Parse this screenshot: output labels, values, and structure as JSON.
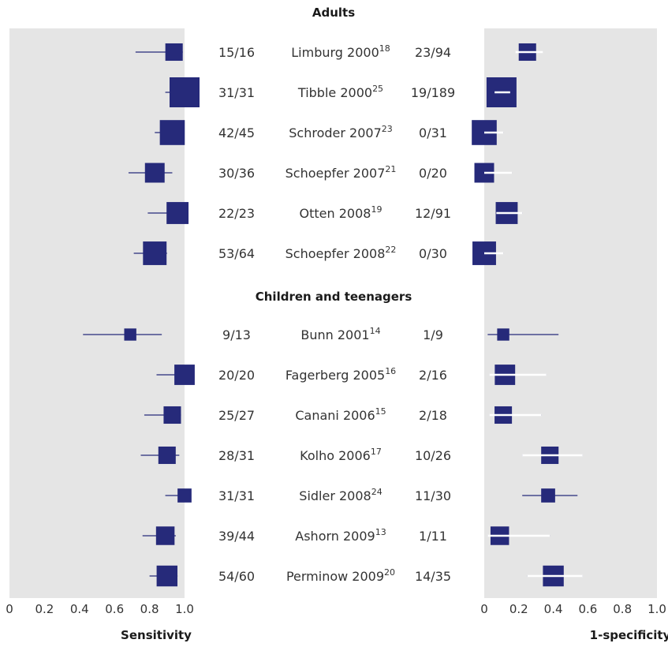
{
  "chart_data": {
    "type": "forest",
    "colors": {
      "marker": "#262a7a",
      "panel": "#e5e5e5"
    },
    "panels": [
      {
        "xlabel": "Sensitivity",
        "xlim": [
          0,
          1.0
        ],
        "ticks": [
          "0",
          "0.2",
          "0.4",
          "0.6",
          "0.8",
          "1.0"
        ]
      },
      {
        "xlabel": "1-specificity",
        "xlim": [
          0,
          1.0
        ],
        "ticks": [
          "0",
          "0.2",
          "0.4",
          "0.6",
          "0.8",
          "1.0"
        ]
      }
    ],
    "groups": [
      {
        "label": "Adults",
        "studies": [
          {
            "sens_count": "15/16",
            "study": "Limburg 2000",
            "ref": "18",
            "spec_count": "23/94",
            "sensitivity": 0.94,
            "sens_ci": [
              0.72,
              0.99
            ],
            "fp_rate": 0.25,
            "fp_ci": [
              0.18,
              0.34
            ],
            "weight": 0.45
          },
          {
            "sens_count": "31/31",
            "study": "Tibble 2000",
            "ref": "25",
            "spec_count": "19/189",
            "sensitivity": 1.0,
            "sens_ci": [
              0.89,
              1.0
            ],
            "fp_rate": 0.1,
            "fp_ci": [
              0.06,
              0.15
            ],
            "weight": 1.0
          },
          {
            "sens_count": "42/45",
            "study": "Schroder 2007",
            "ref": "23",
            "spec_count": "0/31",
            "sensitivity": 0.93,
            "sens_ci": [
              0.83,
              0.99
            ],
            "fp_rate": 0.0,
            "fp_ci": [
              0.0,
              0.11
            ],
            "weight": 0.78
          },
          {
            "sens_count": "30/36",
            "study": "Schoepfer 2007",
            "ref": "21",
            "spec_count": "0/20",
            "sensitivity": 0.83,
            "sens_ci": [
              0.68,
              0.93
            ],
            "fp_rate": 0.0,
            "fp_ci": [
              0.0,
              0.16
            ],
            "weight": 0.55
          },
          {
            "sens_count": "22/23",
            "study": "Otten 2008",
            "ref": "19",
            "spec_count": "12/91",
            "sensitivity": 0.96,
            "sens_ci": [
              0.79,
              1.0
            ],
            "fp_rate": 0.13,
            "fp_ci": [
              0.07,
              0.22
            ],
            "weight": 0.65
          },
          {
            "sens_count": "53/64",
            "study": "Schoepfer 2008",
            "ref": "22",
            "spec_count": "0/30",
            "sensitivity": 0.83,
            "sens_ci": [
              0.71,
              0.9
            ],
            "fp_rate": 0.0,
            "fp_ci": [
              0.0,
              0.11
            ],
            "weight": 0.72
          }
        ]
      },
      {
        "label": "Children and teenagers",
        "studies": [
          {
            "sens_count": "9/13",
            "study": "Bunn 2001",
            "ref": "14",
            "spec_count": "1/9",
            "sensitivity": 0.69,
            "sens_ci": [
              0.42,
              0.87
            ],
            "fp_rate": 0.11,
            "fp_ci": [
              0.02,
              0.43
            ],
            "weight": 0.22
          },
          {
            "sens_count": "20/20",
            "study": "Fagerberg 2005",
            "ref": "16",
            "spec_count": "2/16",
            "sensitivity": 1.0,
            "sens_ci": [
              0.84,
              1.0
            ],
            "fp_rate": 0.12,
            "fp_ci": [
              0.03,
              0.36
            ],
            "weight": 0.58
          },
          {
            "sens_count": "25/27",
            "study": "Canani 2006",
            "ref": "15",
            "spec_count": "2/18",
            "sensitivity": 0.93,
            "sens_ci": [
              0.77,
              0.98
            ],
            "fp_rate": 0.11,
            "fp_ci": [
              0.03,
              0.33
            ],
            "weight": 0.45
          },
          {
            "sens_count": "28/31",
            "study": "Kolho 2006",
            "ref": "17",
            "spec_count": "10/26",
            "sensitivity": 0.9,
            "sens_ci": [
              0.75,
              0.97
            ],
            "fp_rate": 0.38,
            "fp_ci": [
              0.22,
              0.57
            ],
            "weight": 0.45
          },
          {
            "sens_count": "31/31",
            "study": "Sidler 2008",
            "ref": "24",
            "spec_count": "11/30",
            "sensitivity": 1.0,
            "sens_ci": [
              0.89,
              1.0
            ],
            "fp_rate": 0.37,
            "fp_ci": [
              0.22,
              0.54
            ],
            "weight": 0.3
          },
          {
            "sens_count": "39/44",
            "study": "Ashorn 2009",
            "ref": "13",
            "spec_count": "1/11",
            "sensitivity": 0.89,
            "sens_ci": [
              0.76,
              0.95
            ],
            "fp_rate": 0.09,
            "fp_ci": [
              0.02,
              0.38
            ],
            "weight": 0.5
          },
          {
            "sens_count": "54/60",
            "study": "Perminow 2009",
            "ref": "20",
            "spec_count": "14/35",
            "sensitivity": 0.9,
            "sens_ci": [
              0.8,
              0.96
            ],
            "fp_rate": 0.4,
            "fp_ci": [
              0.25,
              0.57
            ],
            "weight": 0.6
          }
        ]
      }
    ]
  }
}
